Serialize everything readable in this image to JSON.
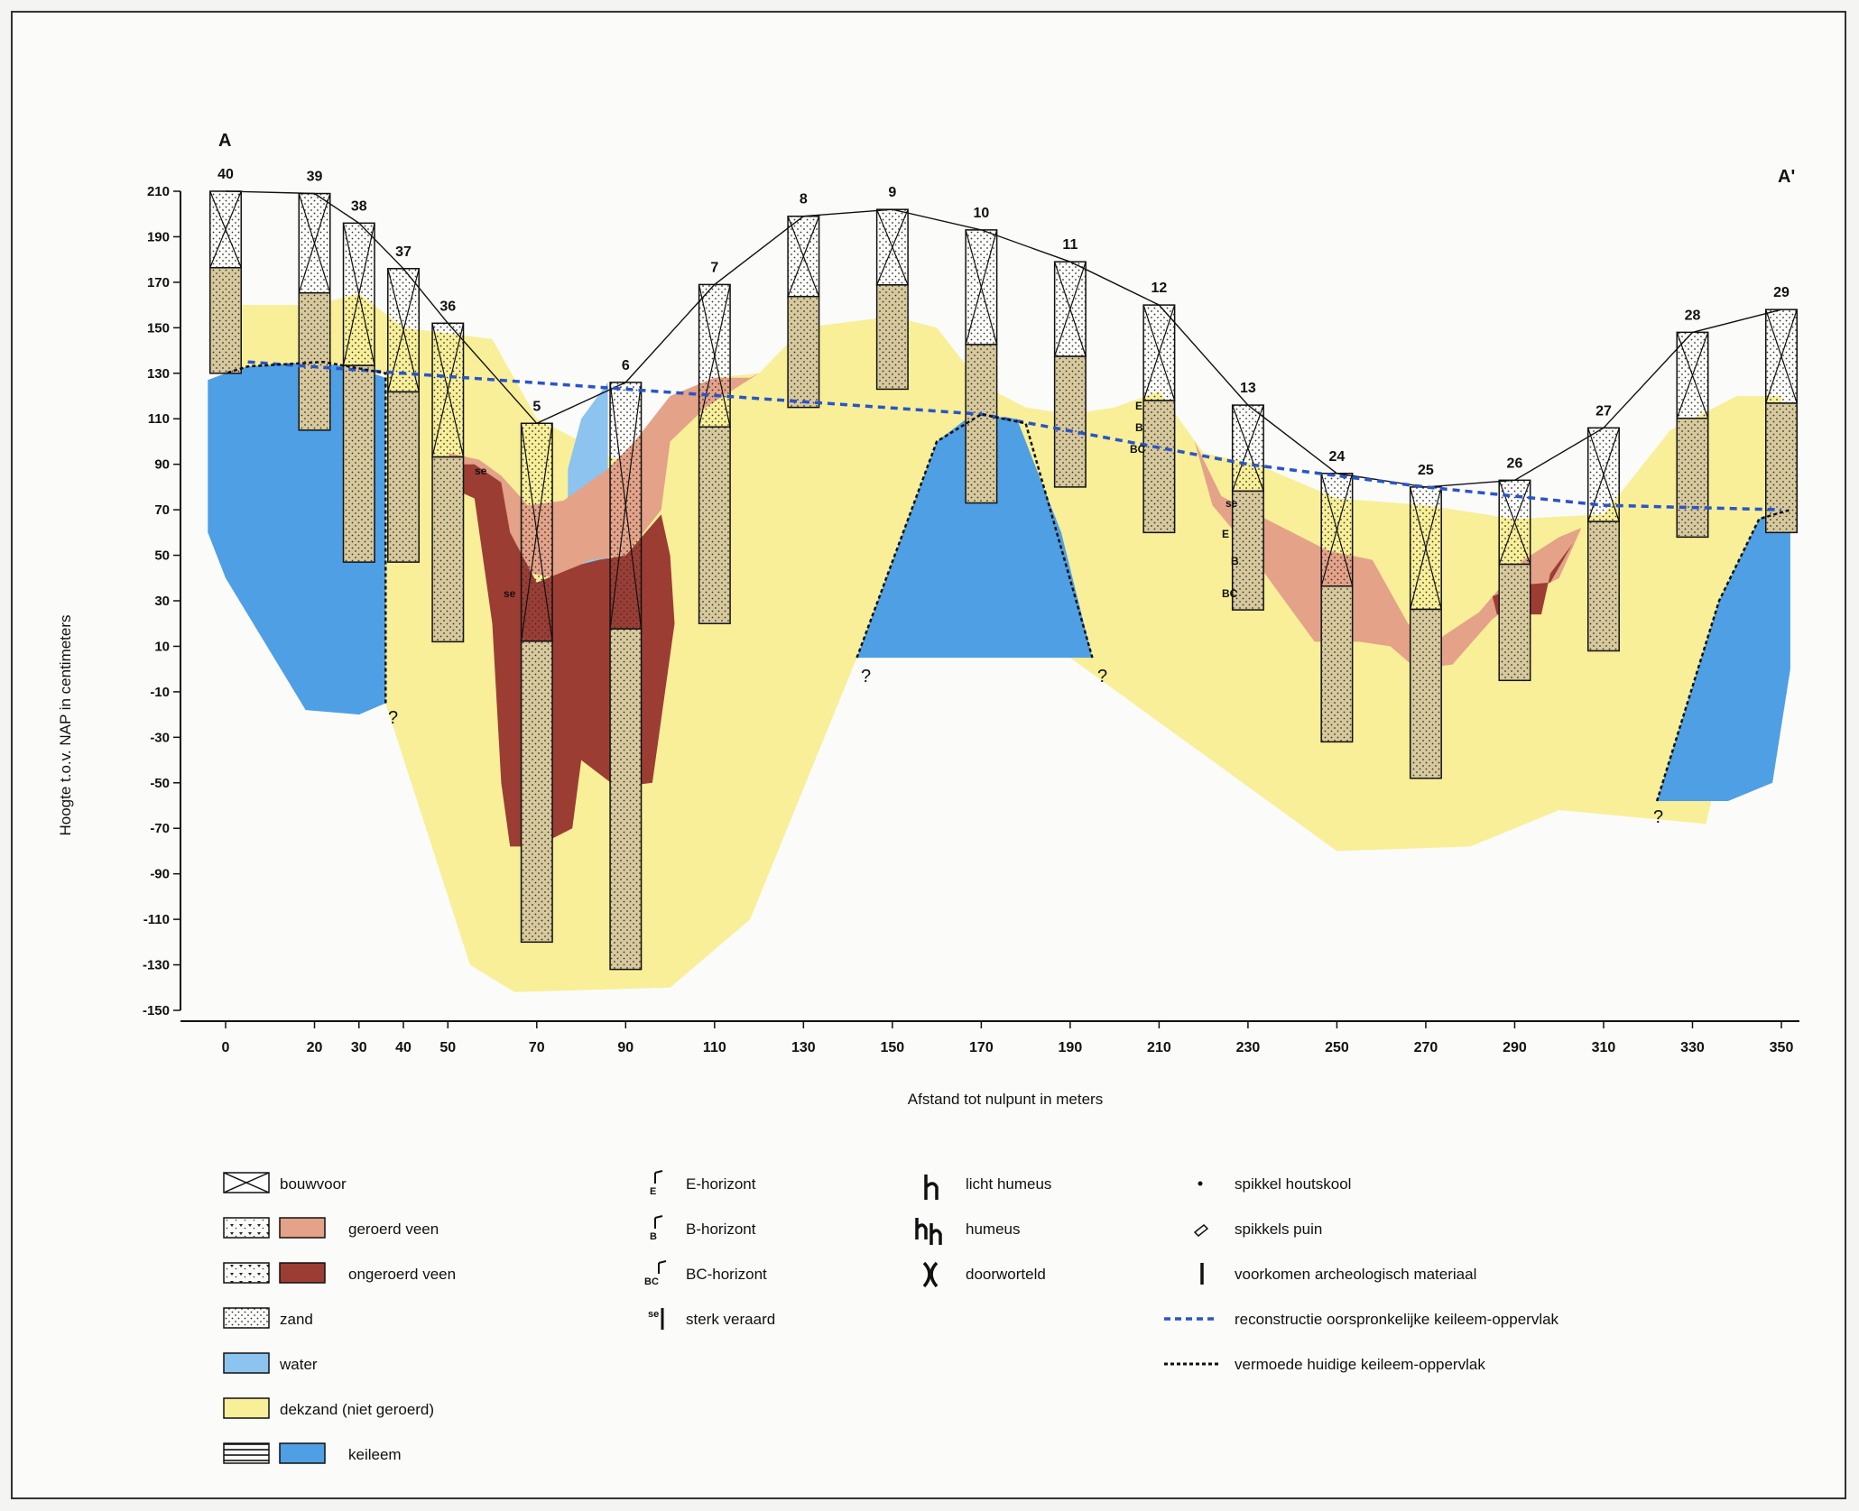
{
  "section": {
    "start_label": "A",
    "end_label": "A'"
  },
  "axes": {
    "y_title": "Hoogte t.o.v. NAP in centimeters",
    "x_title": "Afstand tot nulpunt in meters",
    "y_ticks": [
      210,
      190,
      170,
      150,
      130,
      110,
      90,
      70,
      50,
      30,
      10,
      -10,
      -30,
      -50,
      -70,
      -90,
      -110,
      -130,
      -150
    ],
    "x_ticks": [
      0,
      20,
      30,
      40,
      50,
      70,
      90,
      110,
      130,
      150,
      170,
      190,
      210,
      230,
      250,
      270,
      290,
      310,
      330,
      350
    ],
    "y_range": [
      -150,
      210
    ],
    "x_range": [
      0,
      350
    ]
  },
  "colors": {
    "dekzand": "#f8ef98",
    "keileem": "#4f9fe4",
    "water": "#8cc4ef",
    "geroerd_veen": "#e4a288",
    "ongeroerd_veen": "#9c3d34",
    "zand_column": "#d8c99c"
  },
  "boreholes": [
    {
      "id": "40",
      "x": 0,
      "top": 210,
      "bottom": 130
    },
    {
      "id": "39",
      "x": 20,
      "top": 209,
      "bottom": 105
    },
    {
      "id": "38",
      "x": 30,
      "top": 196,
      "bottom": 47
    },
    {
      "id": "37",
      "x": 40,
      "top": 176,
      "bottom": 47
    },
    {
      "id": "36",
      "x": 50,
      "top": 152,
      "bottom": 12
    },
    {
      "id": "5",
      "x": 70,
      "top": 108,
      "bottom": -120
    },
    {
      "id": "6",
      "x": 90,
      "top": 126,
      "bottom": -132
    },
    {
      "id": "7",
      "x": 110,
      "top": 169,
      "bottom": 20
    },
    {
      "id": "8",
      "x": 130,
      "top": 199,
      "bottom": 115
    },
    {
      "id": "9",
      "x": 150,
      "top": 202,
      "bottom": 123
    },
    {
      "id": "10",
      "x": 170,
      "top": 193,
      "bottom": 73
    },
    {
      "id": "11",
      "x": 190,
      "top": 179,
      "bottom": 80
    },
    {
      "id": "12",
      "x": 210,
      "top": 160,
      "bottom": 60
    },
    {
      "id": "13",
      "x": 230,
      "top": 116,
      "bottom": 26
    },
    {
      "id": "24",
      "x": 250,
      "top": 86,
      "bottom": -32
    },
    {
      "id": "25",
      "x": 270,
      "top": 80,
      "bottom": -48
    },
    {
      "id": "26",
      "x": 290,
      "top": 83,
      "bottom": -5
    },
    {
      "id": "27",
      "x": 310,
      "top": 106,
      "bottom": 8
    },
    {
      "id": "28",
      "x": 330,
      "top": 148,
      "bottom": 58
    },
    {
      "id": "29",
      "x": 350,
      "top": 158,
      "bottom": 60
    }
  ],
  "question_marks": [
    "?",
    "?",
    "?",
    "?"
  ],
  "horizon_marks": [
    "E",
    "B",
    "BC",
    "se",
    "se",
    "se",
    "E",
    "B",
    "BC"
  ],
  "legend": {
    "bouwvoor": "bouwvoor",
    "geroerd_veen": "geroerd veen",
    "ongeroerd_veen": "ongeroerd veen",
    "zand": "zand",
    "water": "water",
    "dekzand": "dekzand (niet geroerd)",
    "keileem": "keileem",
    "e_horizont": "E-horizont",
    "b_horizont": "B-horizont",
    "bc_horizont": "BC-horizont",
    "sterk_veraard": "sterk veraard",
    "licht_humeus": "licht humeus",
    "humeus": "humeus",
    "doorworteld": "doorworteld",
    "spikkel_houtskool": "spikkel houtskool",
    "spikkels_puin": "spikkels puin",
    "archeologisch": "voorkomen archeologisch materiaal",
    "reconstructie": "reconstructie oorspronkelijke keileem-oppervlak",
    "vermoede": "vermoede huidige keileem-oppervlak",
    "sym_e": "E",
    "sym_b": "B",
    "sym_bc": "BC",
    "sym_se": "se"
  }
}
